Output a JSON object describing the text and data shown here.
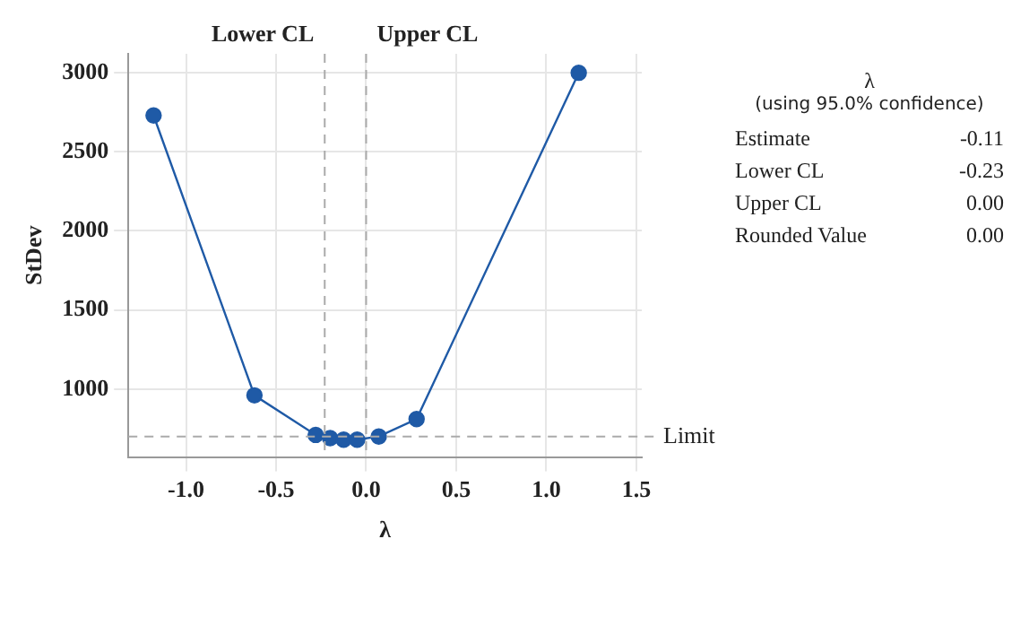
{
  "chart_data": {
    "type": "line",
    "xlabel": "λ",
    "ylabel": "StDev",
    "series": [
      {
        "color": "#1f5aa6",
        "x": [
          -1.18,
          -0.62,
          -0.28,
          -0.2,
          -0.125,
          -0.05,
          0.07,
          0.28,
          1.18
        ],
        "values": [
          2730,
          960,
          710,
          690,
          680,
          680,
          700,
          810,
          3000
        ]
      }
    ],
    "xlim": [
      -1.32,
      1.53
    ],
    "xticks": [
      {
        "value": -1,
        "label": "-1.0"
      },
      {
        "value": -0.5,
        "label": "-0.5"
      },
      {
        "value": 0,
        "label": "0.0"
      },
      {
        "value": 0.5,
        "label": "0.5"
      },
      {
        "value": 1,
        "label": "1.0"
      },
      {
        "value": 1.5,
        "label": "1.5"
      }
    ],
    "ylim": [
      570,
      3120
    ],
    "yticks": [
      1000,
      1500,
      2000,
      2500,
      3000
    ],
    "grid": true,
    "marker": "circle",
    "line_style": "solid",
    "ref_lines": [
      {
        "axis": "x",
        "value": -0.23,
        "label": "Lower CL",
        "color": "#aaaaaa",
        "line_style": "dashed"
      },
      {
        "axis": "x",
        "value": 0,
        "label": "Upper CL",
        "color": "#aaaaaa",
        "line_style": "dashed"
      },
      {
        "axis": "y",
        "value": 700,
        "label": "Limit",
        "color": "#aaaaaa",
        "line_style": "dashed"
      }
    ],
    "annotations": [
      "λ",
      "(using 95.0% confidence)",
      "Estimate",
      "-0.11",
      "Lower CL",
      "-0.23",
      "Upper CL",
      "0.00",
      "Rounded Value",
      "0.00"
    ]
  }
}
